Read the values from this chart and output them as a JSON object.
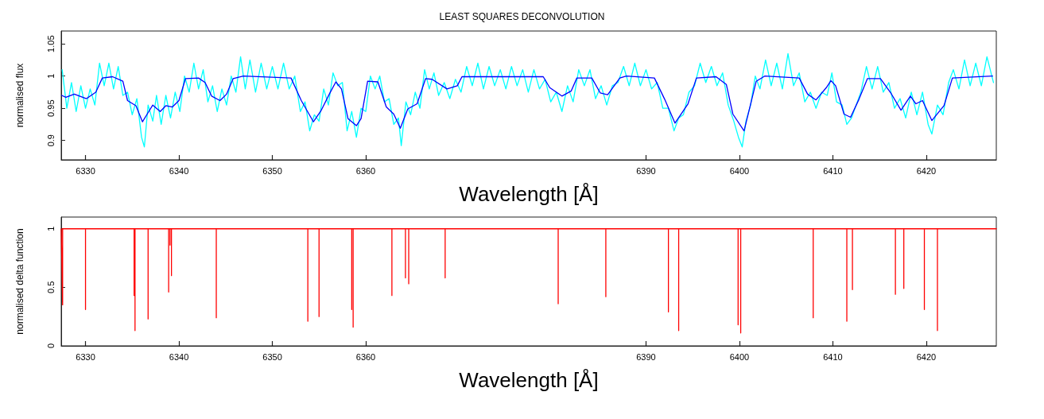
{
  "chart_data": [
    {
      "type": "line",
      "title": "LEAST SQUARES DECONVOLUTION",
      "xlabel": "Wavelength [Å]",
      "ylabel": "normalised flux",
      "xlim": [
        6327.4,
        6427.5
      ],
      "xticks": [
        6330,
        6340,
        6350,
        6360,
        6390,
        6400,
        6410,
        6420
      ],
      "ylim": [
        0.87,
        1.07
      ],
      "yticks": [
        0.9,
        0.95,
        1,
        1.05
      ],
      "grid": false,
      "marker": "none",
      "line_style": "solid",
      "series": [
        {
          "color": "#00ffff",
          "x": [
            6327.5,
            6328.0,
            6328.5,
            6329.0,
            6329.5,
            6330.0,
            6330.5,
            6331.0,
            6331.5,
            6332.0,
            6332.5,
            6333.0,
            6333.5,
            6334.0,
            6334.5,
            6335.0,
            6335.5,
            6336.0,
            6336.3,
            6336.7,
            6337.2,
            6337.6,
            6338.1,
            6338.6,
            6339.1,
            6339.6,
            6340.1,
            6340.6,
            6341.1,
            6341.6,
            6342.1,
            6342.6,
            6343.1,
            6343.6,
            6344.1,
            6344.6,
            6345.1,
            6345.6,
            6346.1,
            6346.6,
            6347.1,
            6347.6,
            6348.2,
            6348.8,
            6349.4,
            6350.0,
            6350.6,
            6351.2,
            6351.8,
            6352.4,
            6353.0,
            6353.5,
            6354.0,
            6354.5,
            6355.0,
            6355.5,
            6356.0,
            6356.5,
            6357.0,
            6357.5,
            6358.0,
            6358.5,
            6359.0,
            6359.5,
            6360.0,
            6360.5,
            6361.0,
            6361.5,
            6362.0,
            6362.5,
            6363.0,
            6363.5,
            6363.8,
            6364.3,
            6364.8,
            6365.3,
            6365.8,
            6366.3,
            6366.8,
            6367.3,
            6367.8,
            6368.4,
            6369.0,
            6369.6,
            6370.2,
            6370.8,
            6371.4,
            6372.0,
            6372.6,
            6373.2,
            6373.8,
            6374.4,
            6375.0,
            6375.6,
            6376.2,
            6376.8,
            6377.4,
            6378.0,
            6378.6,
            6379.2,
            6379.8,
            6380.4,
            6381.0,
            6381.6,
            6382.2,
            6382.8,
            6383.4,
            6384.0,
            6384.6,
            6385.2,
            6385.8,
            6386.4,
            6387.0,
            6387.6,
            6388.2,
            6388.8,
            6389.4,
            6390.0,
            6390.6,
            6391.2,
            6391.8,
            6392.4,
            6393.0,
            6393.5,
            6394.0,
            6394.6,
            6395.2,
            6395.8,
            6396.4,
            6397.0,
            6397.6,
            6398.2,
            6398.8,
            6399.4,
            6399.9,
            6400.3,
            6400.7,
            6401.2,
            6401.7,
            6402.2,
            6402.8,
            6403.4,
            6404.0,
            6404.6,
            6405.2,
            6405.8,
            6406.4,
            6407.0,
            6407.6,
            6408.2,
            6408.8,
            6409.4,
            6409.9,
            6410.4,
            6411.0,
            6411.5,
            6412.0,
            6412.5,
            6413.0,
            6413.6,
            6414.2,
            6414.8,
            6415.4,
            6416.0,
            6416.6,
            6417.2,
            6417.8,
            6418.4,
            6419.0,
            6419.6,
            6420.2,
            6420.6,
            6421.2,
            6421.8,
            6422.4,
            6422.9,
            6423.5,
            6424.1,
            6424.7,
            6425.3,
            6425.9,
            6426.5,
            6427.2
          ],
          "values": [
            1.01,
            0.95,
            0.99,
            0.945,
            0.985,
            0.95,
            0.98,
            0.955,
            1.02,
            0.985,
            1.02,
            0.98,
            1.015,
            0.97,
            0.975,
            0.94,
            0.965,
            0.905,
            0.89,
            0.955,
            0.93,
            0.97,
            0.925,
            0.97,
            0.935,
            0.975,
            0.945,
            1.0,
            0.975,
            1.02,
            0.98,
            1.01,
            0.96,
            0.985,
            0.945,
            0.98,
            0.955,
            1.0,
            0.975,
            1.03,
            0.98,
            1.025,
            0.975,
            1.02,
            0.98,
            1.015,
            0.98,
            1.02,
            0.98,
            1.0,
            0.945,
            0.96,
            0.915,
            0.94,
            0.93,
            0.98,
            0.955,
            1.005,
            0.985,
            0.99,
            0.915,
            0.945,
            0.905,
            0.95,
            0.945,
            1.0,
            0.98,
            1.0,
            0.96,
            0.965,
            0.925,
            0.935,
            0.892,
            0.96,
            0.94,
            0.975,
            0.95,
            1.01,
            0.98,
            1.005,
            0.97,
            0.99,
            0.965,
            0.995,
            0.975,
            1.015,
            0.985,
            1.02,
            0.98,
            1.015,
            0.985,
            1.01,
            0.98,
            1.015,
            0.985,
            1.01,
            0.975,
            1.01,
            0.98,
            0.995,
            0.96,
            0.975,
            0.945,
            0.985,
            0.96,
            1.01,
            0.985,
            1.01,
            0.965,
            0.985,
            0.955,
            0.985,
            0.99,
            1.015,
            0.985,
            1.02,
            0.985,
            1.01,
            0.98,
            0.99,
            0.95,
            0.95,
            0.915,
            0.935,
            0.94,
            0.975,
            0.985,
            1.02,
            0.99,
            1.015,
            0.985,
            1.005,
            0.955,
            0.93,
            0.905,
            0.89,
            0.93,
            0.955,
            1.0,
            0.98,
            1.025,
            0.985,
            1.02,
            0.98,
            1.035,
            0.985,
            1.005,
            0.96,
            0.975,
            0.95,
            0.975,
            0.97,
            1.005,
            0.96,
            0.955,
            0.925,
            0.935,
            0.955,
            0.975,
            1.015,
            0.98,
            1.015,
            0.975,
            0.99,
            0.95,
            0.965,
            0.935,
            0.975,
            0.94,
            0.975,
            0.925,
            0.91,
            0.955,
            0.94,
            0.99,
            1.01,
            0.98,
            1.025,
            0.985,
            1.02,
            0.985,
            1.03,
            0.99
          ]
        },
        {
          "color": "#0000ff",
          "x": [
            6327.45,
            6327.9,
            6328.8,
            6330.1,
            6331.1,
            6331.8,
            6332.9,
            6334.0,
            6334.5,
            6335.4,
            6336.1,
            6336.6,
            6337.2,
            6338.0,
            6338.6,
            6339.3,
            6340.0,
            6340.7,
            6342.1,
            6342.8,
            6343.5,
            6344.4,
            6345.1,
            6345.8,
            6346.9,
            6352.0,
            6353.1,
            6354.4,
            6355.2,
            6356.1,
            6356.8,
            6357.4,
            6358.1,
            6359.0,
            6359.5,
            6360.2,
            6361.3,
            6362.2,
            6363.0,
            6363.7,
            6364.5,
            6365.5,
            6366.4,
            6367.1,
            6368.7,
            6369.8,
            6370.3,
            6379.0,
            6379.7,
            6381.0,
            6382.0,
            6382.6,
            6384.2,
            6385.1,
            6385.9,
            6387.2,
            6387.9,
            6390.9,
            6392.0,
            6393.1,
            6394.5,
            6395.4,
            6397.5,
            6398.6,
            6399.3,
            6400.5,
            6401.8,
            6402.7,
            6406.4,
            6407.3,
            6408.2,
            6409.3,
            6409.8,
            6410.3,
            6411.2,
            6411.9,
            6412.8,
            6413.7,
            6415.1,
            6416.2,
            6417.3,
            6418.3,
            6418.9,
            6419.6,
            6420.6,
            6421.9,
            6422.8,
            6427.1
          ],
          "values": [
            0.97,
            0.967,
            0.972,
            0.965,
            0.975,
            0.997,
            0.999,
            0.992,
            0.962,
            0.954,
            0.929,
            0.941,
            0.955,
            0.945,
            0.954,
            0.952,
            0.962,
            0.996,
            0.997,
            0.99,
            0.969,
            0.962,
            0.972,
            0.996,
            1.0,
            0.997,
            0.962,
            0.929,
            0.946,
            0.972,
            0.991,
            0.98,
            0.934,
            0.923,
            0.934,
            0.992,
            0.991,
            0.952,
            0.941,
            0.919,
            0.949,
            0.957,
            0.996,
            0.995,
            0.98,
            0.985,
            0.999,
            0.999,
            0.982,
            0.969,
            0.977,
            0.997,
            0.997,
            0.974,
            0.971,
            0.997,
            1.0,
            0.997,
            0.964,
            0.927,
            0.957,
            0.997,
            0.999,
            0.987,
            0.941,
            0.915,
            0.992,
            1.0,
            0.997,
            0.972,
            0.963,
            0.982,
            0.993,
            0.985,
            0.941,
            0.936,
            0.964,
            0.996,
            0.996,
            0.974,
            0.947,
            0.969,
            0.957,
            0.962,
            0.931,
            0.954,
            0.997,
            1.0
          ]
        }
      ]
    },
    {
      "type": "line",
      "xlabel": "Wavelength [Å]",
      "ylabel": "normalised delta function",
      "xlim": [
        6327.4,
        6427.5
      ],
      "xticks": [
        6330,
        6340,
        6350,
        6360,
        6390,
        6400,
        6410,
        6420
      ],
      "ylim": [
        0,
        1.1
      ],
      "yticks": [
        0,
        0.5,
        1
      ],
      "grid": false,
      "marker": "none",
      "line_style": "solid",
      "series": [
        {
          "color": "#ff0000",
          "x": [
            6327.4,
            6327.55,
            6327.55,
            6330.0,
            6330.0,
            6330.0,
            6335.2,
            6335.2,
            6335.2,
            6335.3,
            6335.3,
            6335.3,
            6336.7,
            6336.7,
            6336.7,
            6338.9,
            6338.9,
            6338.9,
            6339.05,
            6339.05,
            6339.05,
            6339.2,
            6339.2,
            6339.2,
            6344.0,
            6344.0,
            6344.0,
            6353.8,
            6353.8,
            6353.8,
            6355.0,
            6355.0,
            6355.0,
            6358.5,
            6358.5,
            6358.5,
            6358.65,
            6358.65,
            6358.65,
            6362.8,
            6362.8,
            6362.8,
            6364.25,
            6364.25,
            6364.25,
            6364.6,
            6364.6,
            6364.6,
            6368.5,
            6368.5,
            6368.5,
            6380.6,
            6380.6,
            6380.6,
            6385.7,
            6385.7,
            6385.7,
            6392.4,
            6392.4,
            6392.4,
            6393.5,
            6393.5,
            6393.5,
            6399.86,
            6399.86,
            6399.86,
            6400.14,
            6400.14,
            6400.14,
            6407.9,
            6407.9,
            6407.9,
            6411.5,
            6411.5,
            6411.5,
            6412.1,
            6412.1,
            6412.1,
            6416.7,
            6416.7,
            6416.7,
            6417.6,
            6417.6,
            6417.6,
            6419.8,
            6419.8,
            6419.8,
            6421.2,
            6421.2,
            6421.2,
            6427.5
          ],
          "values": [
            1,
            0.35,
            1,
            1,
            0.31,
            1,
            1,
            0.43,
            1,
            1,
            0.13,
            1,
            1,
            0.23,
            1,
            1,
            0.46,
            1,
            1,
            0.86,
            1,
            1,
            0.6,
            1,
            1,
            0.24,
            1,
            1,
            0.21,
            1,
            1,
            0.25,
            1,
            1,
            0.31,
            1,
            1,
            0.16,
            1,
            1,
            0.43,
            1,
            1,
            0.58,
            1,
            1,
            0.53,
            1,
            1,
            0.58,
            1,
            1,
            0.36,
            1,
            1,
            0.42,
            1,
            1,
            0.29,
            1,
            1,
            0.13,
            1,
            1,
            0.18,
            1,
            1,
            0.11,
            1,
            1,
            0.24,
            1,
            1,
            0.21,
            1,
            1,
            0.48,
            1,
            1,
            0.44,
            1,
            1,
            0.49,
            1,
            1,
            0.31,
            1,
            1,
            0.13,
            1,
            1
          ]
        }
      ]
    }
  ]
}
